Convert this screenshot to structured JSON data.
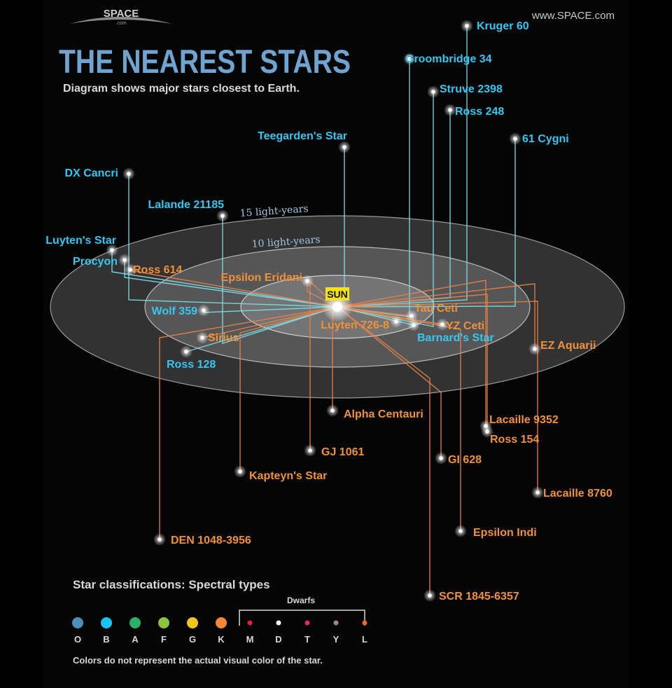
{
  "brand": {
    "logo": "SPACE",
    "logo_sub": ".com",
    "site": "www.SPACE.com"
  },
  "title": "THE NEAREST STARS",
  "subtitle": "Diagram shows major stars closest to Earth.",
  "rings": {
    "outer": "15 light-years",
    "inner": "10 light-years"
  },
  "sun": "SUN",
  "colors": {
    "blue_star": "#35c7f2",
    "orange_star": "#f0923a",
    "title": "#6fa4d0",
    "line_blue": "#7ee0ea",
    "line_orange": "#e8834a"
  },
  "stars": [
    {
      "name": "Kruger 60",
      "color": "blue"
    },
    {
      "name": "Groombridge 34",
      "color": "blue"
    },
    {
      "name": "Struve 2398",
      "color": "blue"
    },
    {
      "name": "Ross 248",
      "color": "blue"
    },
    {
      "name": "61 Cygni",
      "color": "blue"
    },
    {
      "name": "Teegarden's Star",
      "color": "blue"
    },
    {
      "name": "DX Cancri",
      "color": "blue"
    },
    {
      "name": "Lalande 21185",
      "color": "blue"
    },
    {
      "name": "Luyten's Star",
      "color": "blue"
    },
    {
      "name": "Procyon",
      "color": "blue"
    },
    {
      "name": "Ross 614",
      "color": "orange"
    },
    {
      "name": "Epsilon Eridani",
      "color": "orange"
    },
    {
      "name": "Wolf 359",
      "color": "blue"
    },
    {
      "name": "Sirius",
      "color": "orange"
    },
    {
      "name": "Ross 128",
      "color": "blue"
    },
    {
      "name": "Tau Ceti",
      "color": "orange"
    },
    {
      "name": "YZ Ceti",
      "color": "orange"
    },
    {
      "name": "Luyten 726-8",
      "color": "orange"
    },
    {
      "name": "Barnard's Star",
      "color": "blue"
    },
    {
      "name": "EZ Aquarii",
      "color": "orange"
    },
    {
      "name": "Alpha Centauri",
      "color": "orange"
    },
    {
      "name": "Lacaille 9352",
      "color": "orange"
    },
    {
      "name": "Ross 154",
      "color": "orange"
    },
    {
      "name": "GJ 1061",
      "color": "orange"
    },
    {
      "name": "GI 628",
      "color": "orange"
    },
    {
      "name": "Kapteyn's Star",
      "color": "orange"
    },
    {
      "name": "Lacaille 8760",
      "color": "orange"
    },
    {
      "name": "Epsilon Indi",
      "color": "orange"
    },
    {
      "name": "DEN 1048-3956",
      "color": "orange"
    },
    {
      "name": "SCR 1845-6357",
      "color": "orange"
    }
  ],
  "legend": {
    "heading": "Star classifications: Spectral types",
    "dwarfs": "Dwarfs",
    "types": [
      {
        "letter": "O",
        "color": "#4a90b8"
      },
      {
        "letter": "B",
        "color": "#19c4f3"
      },
      {
        "letter": "A",
        "color": "#29b36a"
      },
      {
        "letter": "F",
        "color": "#8bc440"
      },
      {
        "letter": "G",
        "color": "#f2c51a"
      },
      {
        "letter": "K",
        "color": "#f0883a"
      },
      {
        "letter": "M",
        "color": "#e6203a"
      },
      {
        "letter": "D",
        "color": "#ffffff"
      },
      {
        "letter": "T",
        "color": "#e3277a"
      },
      {
        "letter": "Y",
        "color": "#a88a6a"
      },
      {
        "letter": "L",
        "color": "#ee6a2a"
      }
    ],
    "note": "Colors do not represent the actual visual color of the star."
  }
}
